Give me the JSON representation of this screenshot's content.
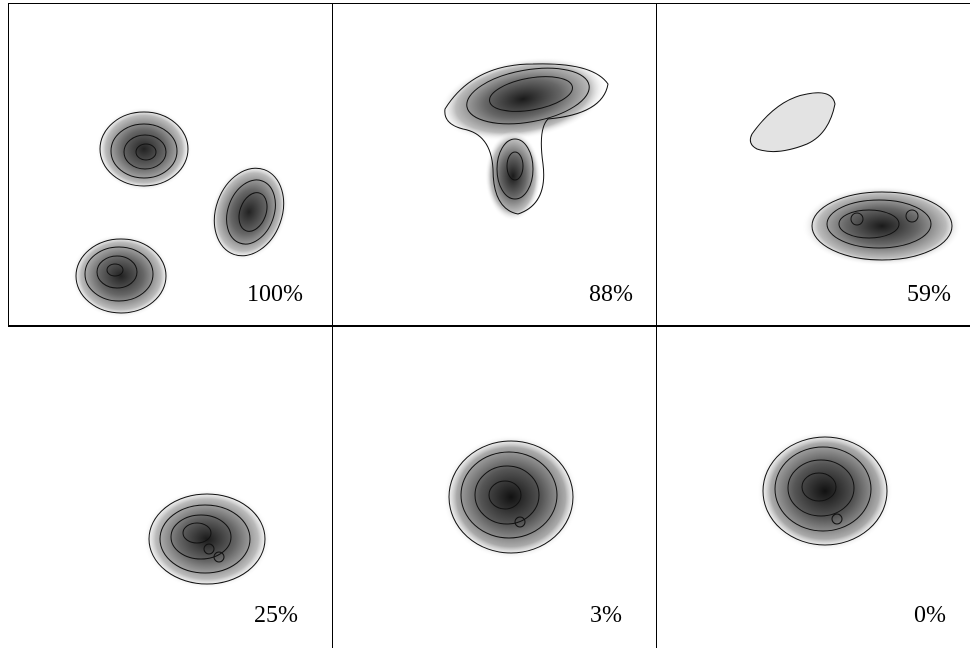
{
  "panels": [
    {
      "label": "100%"
    },
    {
      "label": "88%"
    },
    {
      "label": "59%"
    },
    {
      "label": "25%"
    },
    {
      "label": "3%"
    },
    {
      "label": "0%"
    }
  ]
}
